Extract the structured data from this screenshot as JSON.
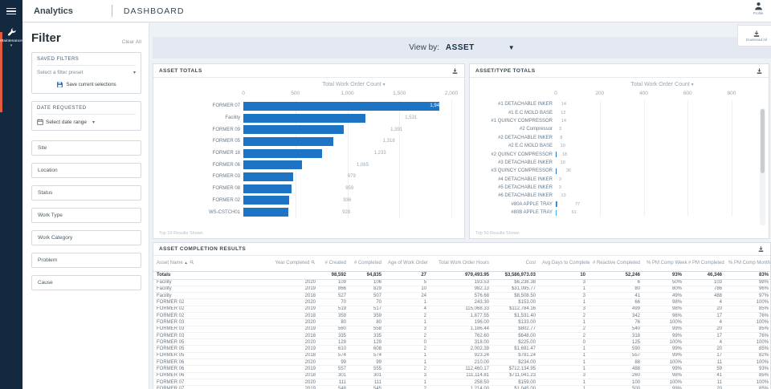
{
  "topbar": {
    "app_title": "Analytics",
    "page_title": "DASHBOARD",
    "profile_label": "Profile"
  },
  "sidebar": {
    "active_item": "Maintenance"
  },
  "filter_panel": {
    "title": "Filter",
    "clear_all": "Clear All",
    "saved_filters_label": "SAVED FILTERS",
    "preset_placeholder": "Select a filter preset",
    "save_selections_label": "Save current selections",
    "date_requested_label": "DATE REQUESTED",
    "date_range_placeholder": "Select date range",
    "sections": [
      "Site",
      "Location",
      "Status",
      "Work Type",
      "Work Category",
      "Problem",
      "Cause"
    ]
  },
  "toolbar": {
    "view_by_label": "View by:",
    "view_by_value": "ASSET",
    "download_all_label": "Download All"
  },
  "colors": {
    "accent_orange": "#e05b3f",
    "bar_primary": "#1d74c4",
    "bar_secondary": "#3cb0ee",
    "navy": "#132940"
  },
  "chart_data": [
    {
      "type": "bar",
      "orientation": "horizontal",
      "title": "ASSET TOTALS",
      "axis_title": "Total Work Order Count",
      "xlim": [
        0,
        2000
      ],
      "axis_ticks": [
        "0",
        "500",
        "1,000",
        "1,500",
        "2,000"
      ],
      "y_axis_label": "Asset Name",
      "grid": true,
      "footnote": "Top 10 Results Shown",
      "categories": [
        "FORMER 07",
        "Facility",
        "FORMER 09",
        "FORMER 05",
        "FORMER 18",
        "FORMER 06",
        "FORMER 03",
        "FORMER 08",
        "FORMER 02",
        "WS-CSTCH01"
      ],
      "series": [
        {
          "name": "primary",
          "values": [
            1941,
            1531,
            1391,
            1318,
            1233,
            1065,
            979,
            959,
            936,
            928
          ]
        }
      ],
      "value_labels": [
        "1,941",
        "1,531",
        "1,391",
        "1,318",
        "1,233",
        "1,065",
        "979",
        "959",
        "936",
        "928"
      ],
      "label_inside": [
        true,
        false,
        false,
        false,
        false,
        false,
        false,
        false,
        false,
        false
      ]
    },
    {
      "type": "bar",
      "orientation": "horizontal",
      "stacked": true,
      "title": "ASSET/TYPE TOTALS",
      "axis_title": "Total Work Order Count",
      "xlim": [
        0,
        800
      ],
      "axis_ticks": [
        "0",
        "200",
        "400",
        "600",
        "800"
      ],
      "y_axis_label": "Asset Name, Work Type",
      "grid": true,
      "footnote": "Top 50 Results Shown",
      "scrollbar": true,
      "categories": [
        "#1 DETACHABLE INKER",
        "#1 E.C MOLD BASE",
        "#1 QUINCY COMPRESSOR",
        "#2 Compressor",
        "#2 DETACHABLE INKER",
        "#2 E.C MOLD BASE",
        "#2 QUINCY COMPRESSOR",
        "#3 DETACHABLE INKER",
        "#3 QUINCY COMPRESSOR",
        "#4 DETACHABLE INKER",
        "#5 DETACHABLE INKER",
        "#6 DETACHABLE INKER",
        "#80A APPLE TRAY",
        "#80B APPLE TRAY"
      ],
      "series": [
        {
          "name": "primary",
          "values": [
            14,
            12,
            14,
            3,
            8,
            10,
            18,
            10,
            36,
            3,
            3,
            13,
            29,
            23
          ]
        },
        {
          "name": "secondary",
          "values": [
            0,
            0,
            0,
            0,
            0,
            0,
            0,
            0,
            0,
            0,
            0,
            0,
            48,
            38
          ]
        }
      ],
      "value_labels": [
        "14",
        "12",
        "14",
        "3",
        "8",
        "10",
        "18",
        "10",
        "36",
        "3",
        "3",
        "13",
        "77",
        "61"
      ],
      "label_inside": [
        false,
        false,
        false,
        false,
        false,
        false,
        false,
        false,
        false,
        false,
        false,
        false,
        false,
        false
      ]
    }
  ],
  "table": {
    "title": "ASSET COMPLETION RESULTS",
    "columns": [
      "Asset Name",
      "Year Completed",
      "# Created",
      "# Completed",
      "Age of Work Order",
      "Total Work Order Hours",
      "Cost",
      "Avg Days to Complete",
      "# Reactive Completed",
      "% PM Comp Week",
      "# PM Completed",
      "% PM Comp Month"
    ],
    "totals": [
      "Totals",
      "",
      "98,592",
      "94,835",
      "27",
      "979,493.95",
      "$3,586,973.03",
      "10",
      "52,246",
      "93%",
      "46,346",
      "83%"
    ],
    "rows": [
      [
        "Facility",
        "2020",
        "109",
        "106",
        "5",
        "193.53",
        "$6,238.38",
        "3",
        "6",
        "50%",
        "103",
        "98%"
      ],
      [
        "Facility",
        "2019",
        "866",
        "829",
        "10",
        "982.13",
        "$31,095.77",
        "1",
        "80",
        "80%",
        "786",
        "96%"
      ],
      [
        "Facility",
        "2018",
        "527",
        "507",
        "24",
        "576.68",
        "$8,508.50",
        "3",
        "41",
        "49%",
        "488",
        "97%"
      ],
      [
        "FORMER 02",
        "2020",
        "70",
        "70",
        "1",
        "243.30",
        "$153.00",
        "1",
        "66",
        "98%",
        "4",
        "100%"
      ],
      [
        "FORMER 02",
        "2019",
        "519",
        "517",
        "4",
        "115,068.33",
        "$112,784.16",
        "3",
        "499",
        "98%",
        "20",
        "85%"
      ],
      [
        "FORMER 02",
        "2018",
        "359",
        "359",
        "2",
        "1,877.55",
        "$1,531.40",
        "2",
        "342",
        "96%",
        "17",
        "76%"
      ],
      [
        "FORMER 03",
        "2020",
        "80",
        "80",
        "1",
        "196.00",
        "$133.00",
        "1",
        "76",
        "100%",
        "4",
        "100%"
      ],
      [
        "FORMER 03",
        "2019",
        "560",
        "558",
        "3",
        "1,186.44",
        "$802.77",
        "2",
        "540",
        "99%",
        "20",
        "85%"
      ],
      [
        "FORMER 03",
        "2018",
        "335",
        "335",
        "2",
        "762.60",
        "$648.00",
        "2",
        "318",
        "99%",
        "17",
        "76%"
      ],
      [
        "FORMER 05",
        "2020",
        "129",
        "129",
        "0",
        "318.00",
        "$225.00",
        "0",
        "125",
        "100%",
        "4",
        "100%"
      ],
      [
        "FORMER 05",
        "2019",
        "610",
        "608",
        "2",
        "2,002.39",
        "$1,691.47",
        "1",
        "590",
        "99%",
        "20",
        "85%"
      ],
      [
        "FORMER 05",
        "2018",
        "574",
        "574",
        "1",
        "923.24",
        "$781.24",
        "1",
        "557",
        "99%",
        "17",
        "82%"
      ],
      [
        "FORMER 06",
        "2020",
        "99",
        "99",
        "1",
        "210.00",
        "$234.00",
        "1",
        "88",
        "100%",
        "11",
        "100%"
      ],
      [
        "FORMER 06",
        "2019",
        "557",
        "555",
        "2",
        "112,460.17",
        "$712,134.95",
        "1",
        "488",
        "99%",
        "59",
        "93%"
      ],
      [
        "FORMER 06",
        "2018",
        "301",
        "301",
        "3",
        "111,114.81",
        "$711,041.23",
        "3",
        "260",
        "98%",
        "41",
        "85%"
      ],
      [
        "FORMER 07",
        "2020",
        "111",
        "111",
        "1",
        "258.50",
        "$159.00",
        "1",
        "100",
        "100%",
        "11",
        "100%"
      ],
      [
        "FORMER 07",
        "2019",
        "548",
        "545",
        "2",
        "1,214.00",
        "$1,045.00",
        "1",
        "500",
        "99%",
        "20",
        "85%"
      ]
    ]
  }
}
